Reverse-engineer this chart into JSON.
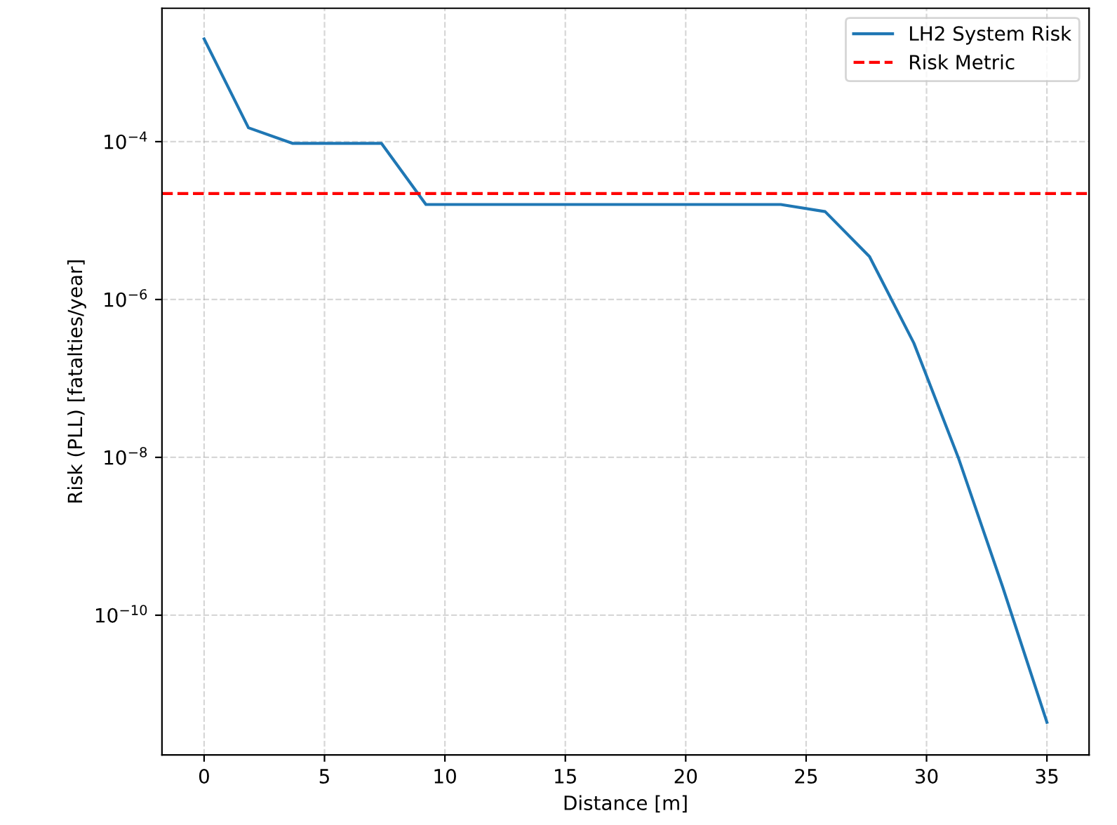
{
  "chart_data": {
    "type": "line",
    "xlabel": "Distance [m]",
    "ylabel": "Risk (PLL) [fatalties/year]",
    "x": [
      0,
      1.842,
      3.684,
      5.526,
      7.368,
      9.211,
      11.053,
      12.895,
      14.737,
      16.579,
      18.421,
      20.263,
      22.105,
      23.947,
      25.789,
      27.632,
      29.474,
      31.316,
      33.158,
      35
    ],
    "series": [
      {
        "name": "LH2 System Risk",
        "color": "#1f77b4",
        "values": [
          0.002,
          0.00015,
          9.5e-05,
          9.5e-05,
          9.5e-05,
          1.6e-05,
          1.6e-05,
          1.6e-05,
          1.6e-05,
          1.6e-05,
          1.6e-05,
          1.6e-05,
          1.6e-05,
          1.6e-05,
          1.3e-05,
          3.5e-06,
          2.8e-07,
          1e-08,
          2.3e-10,
          4.4e-12
        ]
      }
    ],
    "ref_lines": [
      {
        "axis": "y",
        "value": 2.2e-05,
        "label": "Risk Metric",
        "color": "#ff0000",
        "line_style": "dashed"
      }
    ],
    "log": "y",
    "xlim": [
      -1.75,
      36.75
    ],
    "ylim": [
      1.7e-12,
      0.0049
    ],
    "xticks": [
      0,
      5,
      10,
      15,
      20,
      25,
      30,
      35
    ],
    "yticks": [
      {
        "value": 1e-10,
        "label": "10$^{−10}$"
      },
      {
        "value": 1e-08,
        "label": "10$^{−8}$"
      },
      {
        "value": 1e-06,
        "label": "10$^{−6}$"
      },
      {
        "value": 0.0001,
        "label": "10$^{−4}$"
      }
    ],
    "grid": true,
    "legend": "top right",
    "line_style": "solid",
    "marker": "none"
  }
}
